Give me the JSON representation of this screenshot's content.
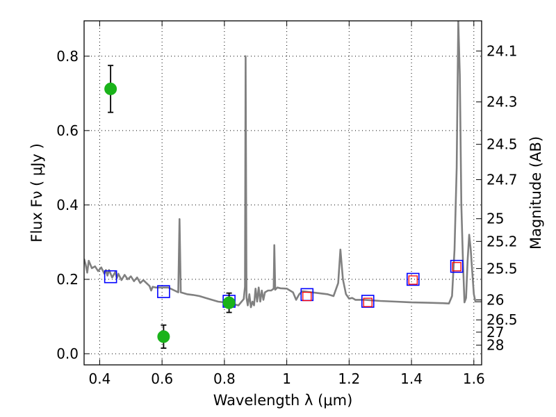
{
  "chart_data": {
    "type": "scatter",
    "xlabel": "Wavelength  λ (μm)",
    "ylabel": "Flux  Fν  ( μJy )",
    "ylabel_right": "Magnitude (AB)",
    "xlim": [
      0.35,
      1.625
    ],
    "ylim": [
      -0.03,
      0.895
    ],
    "grid": true,
    "x_ticks": [
      0.4,
      0.6,
      0.8,
      1.0,
      1.2,
      1.4,
      1.6
    ],
    "x_tick_labels": [
      "0.4",
      "0.6",
      "0.8",
      "1",
      "1.2",
      "1.4",
      "1.6"
    ],
    "y_ticks": [
      0.0,
      0.2,
      0.4,
      0.6,
      0.8
    ],
    "y_tick_labels": [
      "0.0",
      "0.2",
      "0.4",
      "0.6",
      "0.8"
    ],
    "right_ticks": [
      {
        "label": "24.1",
        "flux": 0.814
      },
      {
        "label": "24.3",
        "flux": 0.677
      },
      {
        "label": "24.5",
        "flux": 0.563
      },
      {
        "label": "24.7",
        "flux": 0.468
      },
      {
        "label": "25",
        "flux": 0.363
      },
      {
        "label": "25.2",
        "flux": 0.302
      },
      {
        "label": "25.5",
        "flux": 0.229
      },
      {
        "label": "26",
        "flux": 0.145
      },
      {
        "label": "26.5",
        "flux": 0.091
      },
      {
        "label": "27",
        "flux": 0.058
      },
      {
        "label": "28",
        "flux": 0.023
      }
    ],
    "colors": {
      "model": "#808080",
      "detections": "#1ab31a",
      "model_photometry": "#0000ff",
      "observed_photometry": "#ff0000",
      "grid": "#000000"
    },
    "series": [
      {
        "kind": "line",
        "points": [
          [
            0.35,
            0.255
          ],
          [
            0.355,
            0.24
          ],
          [
            0.36,
            0.218
          ],
          [
            0.365,
            0.25
          ],
          [
            0.375,
            0.23
          ],
          [
            0.385,
            0.235
          ],
          [
            0.395,
            0.222
          ],
          [
            0.405,
            0.232
          ],
          [
            0.415,
            0.215
          ],
          [
            0.42,
            0.225
          ],
          [
            0.425,
            0.21
          ],
          [
            0.43,
            0.225
          ],
          [
            0.44,
            0.205
          ],
          [
            0.45,
            0.22
          ],
          [
            0.455,
            0.203
          ],
          [
            0.46,
            0.215
          ],
          [
            0.47,
            0.198
          ],
          [
            0.48,
            0.212
          ],
          [
            0.49,
            0.2
          ],
          [
            0.5,
            0.208
          ],
          [
            0.51,
            0.195
          ],
          [
            0.52,
            0.205
          ],
          [
            0.53,
            0.19
          ],
          [
            0.54,
            0.198
          ],
          [
            0.55,
            0.19
          ],
          [
            0.56,
            0.182
          ],
          [
            0.565,
            0.17
          ],
          [
            0.57,
            0.18
          ],
          [
            0.58,
            0.178
          ],
          [
            0.6,
            0.178
          ],
          [
            0.62,
            0.178
          ],
          [
            0.64,
            0.17
          ],
          [
            0.652,
            0.165
          ],
          [
            0.656,
            0.362
          ],
          [
            0.66,
            0.165
          ],
          [
            0.68,
            0.16
          ],
          [
            0.7,
            0.158
          ],
          [
            0.72,
            0.155
          ],
          [
            0.74,
            0.15
          ],
          [
            0.76,
            0.145
          ],
          [
            0.78,
            0.14
          ],
          [
            0.8,
            0.138
          ],
          [
            0.82,
            0.135
          ],
          [
            0.835,
            0.132
          ],
          [
            0.845,
            0.13
          ],
          [
            0.855,
            0.14
          ],
          [
            0.862,
            0.147
          ],
          [
            0.866,
            0.18
          ],
          [
            0.868,
            0.8
          ],
          [
            0.871,
            0.15
          ],
          [
            0.875,
            0.13
          ],
          [
            0.88,
            0.16
          ],
          [
            0.885,
            0.125
          ],
          [
            0.89,
            0.14
          ],
          [
            0.895,
            0.13
          ],
          [
            0.9,
            0.175
          ],
          [
            0.905,
            0.14
          ],
          [
            0.91,
            0.178
          ],
          [
            0.915,
            0.14
          ],
          [
            0.92,
            0.17
          ],
          [
            0.925,
            0.145
          ],
          [
            0.93,
            0.165
          ],
          [
            0.94,
            0.17
          ],
          [
            0.95,
            0.17
          ],
          [
            0.958,
            0.175
          ],
          [
            0.96,
            0.292
          ],
          [
            0.963,
            0.172
          ],
          [
            0.97,
            0.178
          ],
          [
            0.98,
            0.176
          ],
          [
            1.0,
            0.175
          ],
          [
            1.02,
            0.165
          ],
          [
            1.03,
            0.145
          ],
          [
            1.04,
            0.16
          ],
          [
            1.05,
            0.168
          ],
          [
            1.1,
            0.163
          ],
          [
            1.13,
            0.16
          ],
          [
            1.15,
            0.155
          ],
          [
            1.165,
            0.19
          ],
          [
            1.172,
            0.28
          ],
          [
            1.18,
            0.2
          ],
          [
            1.19,
            0.16
          ],
          [
            1.2,
            0.148
          ],
          [
            1.21,
            0.15
          ],
          [
            1.22,
            0.145
          ],
          [
            1.25,
            0.145
          ],
          [
            1.3,
            0.142
          ],
          [
            1.35,
            0.14
          ],
          [
            1.4,
            0.138
          ],
          [
            1.45,
            0.137
          ],
          [
            1.5,
            0.136
          ],
          [
            1.52,
            0.135
          ],
          [
            1.53,
            0.155
          ],
          [
            1.538,
            0.28
          ],
          [
            1.545,
            0.5
          ],
          [
            1.55,
            0.895
          ],
          [
            1.555,
            0.75
          ],
          [
            1.56,
            0.4
          ],
          [
            1.565,
            0.25
          ],
          [
            1.57,
            0.138
          ],
          [
            1.575,
            0.15
          ],
          [
            1.58,
            0.25
          ],
          [
            1.585,
            0.32
          ],
          [
            1.59,
            0.28
          ],
          [
            1.595,
            0.22
          ],
          [
            1.6,
            0.16
          ],
          [
            1.605,
            0.14
          ],
          [
            1.625,
            0.14
          ]
        ]
      },
      {
        "kind": "points",
        "marker": "circle",
        "points": [
          {
            "x": 0.435,
            "y": 0.712,
            "err": 0.063
          },
          {
            "x": 0.605,
            "y": 0.046,
            "err": 0.031
          },
          {
            "x": 0.815,
            "y": 0.137,
            "err": 0.026
          }
        ]
      },
      {
        "kind": "points",
        "marker": "square",
        "points": [
          {
            "x": 0.435,
            "y": 0.207
          },
          {
            "x": 0.605,
            "y": 0.167
          },
          {
            "x": 0.815,
            "y": 0.141
          },
          {
            "x": 1.065,
            "y": 0.159
          },
          {
            "x": 1.26,
            "y": 0.141
          },
          {
            "x": 1.405,
            "y": 0.2
          },
          {
            "x": 1.545,
            "y": 0.235
          }
        ]
      },
      {
        "kind": "points",
        "marker": "square",
        "points": [
          {
            "x": 1.065,
            "y": 0.154
          },
          {
            "x": 1.26,
            "y": 0.138
          },
          {
            "x": 1.405,
            "y": 0.198
          },
          {
            "x": 1.545,
            "y": 0.234
          }
        ]
      }
    ]
  }
}
